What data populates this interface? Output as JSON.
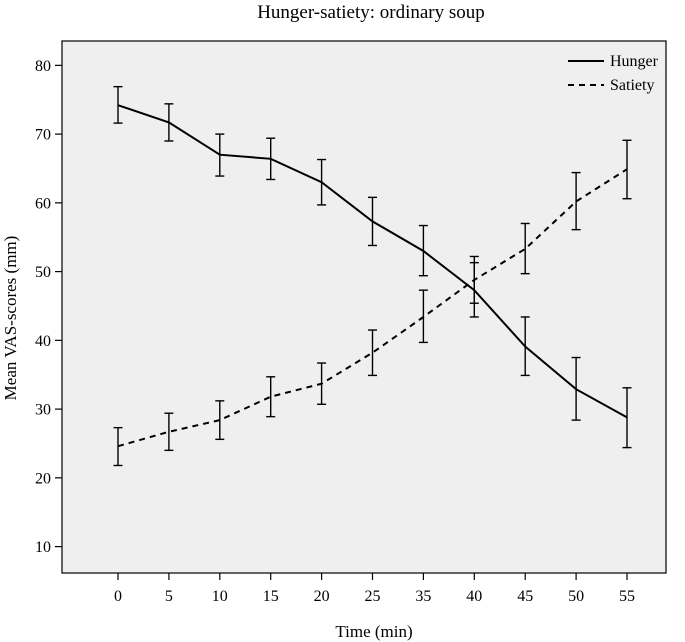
{
  "chart_data": {
    "type": "line",
    "title": "Hunger-satiety: ordinary soup",
    "xlabel": "Time (min)",
    "ylabel": "Mean VAS-scores (mm)",
    "categories": [
      "0",
      "5",
      "10",
      "15",
      "20",
      "25",
      "35",
      "40",
      "45",
      "50",
      "55"
    ],
    "y_ticks": [
      10,
      20,
      30,
      40,
      50,
      60,
      70,
      80
    ],
    "ylim": [
      5,
      84
    ],
    "grid": false,
    "legend_position": "top-right",
    "series": [
      {
        "name": "Hunger",
        "line_style": "solid",
        "values": [
          74.2,
          71.7,
          67.0,
          66.4,
          63.0,
          57.3,
          53.0,
          47.3,
          39.1,
          32.9,
          28.8
        ],
        "error_low": [
          71.6,
          69.0,
          63.9,
          63.4,
          59.7,
          53.8,
          49.4,
          43.4,
          34.9,
          28.4,
          24.4
        ],
        "error_high": [
          76.9,
          74.4,
          70.0,
          69.4,
          66.3,
          60.8,
          56.7,
          51.3,
          43.4,
          37.5,
          33.1
        ]
      },
      {
        "name": "Satiety",
        "line_style": "dashed",
        "values": [
          24.6,
          26.7,
          28.4,
          31.8,
          33.7,
          38.2,
          43.4,
          48.8,
          53.3,
          60.2,
          64.9
        ],
        "error_low": [
          21.8,
          24.0,
          25.6,
          28.9,
          30.7,
          34.9,
          39.7,
          45.4,
          49.7,
          56.1,
          60.6
        ],
        "error_high": [
          27.3,
          29.4,
          31.2,
          34.7,
          36.7,
          41.5,
          47.3,
          52.2,
          57.0,
          64.4,
          69.1
        ]
      }
    ]
  },
  "colors": {
    "plot_background": "#efefef",
    "line": "#000000"
  }
}
